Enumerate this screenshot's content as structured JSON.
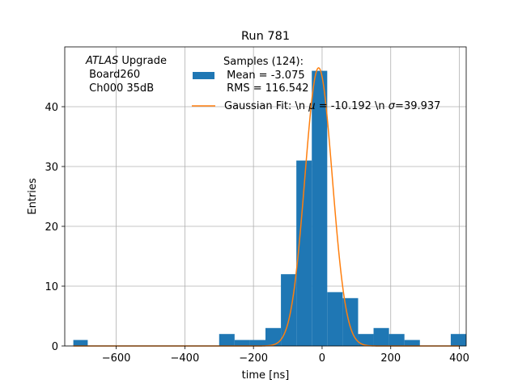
{
  "chart_data": {
    "type": "bar",
    "title": "Run 781",
    "xlabel": "time [ns]",
    "ylabel": "Entries",
    "xlim": [
      -750,
      420
    ],
    "ylim": [
      0,
      50
    ],
    "xticks": [
      -600,
      -400,
      -200,
      0,
      200,
      400
    ],
    "yticks": [
      0,
      10,
      20,
      30,
      40
    ],
    "grid": true,
    "legend_position": "top-center",
    "annotation": {
      "line1_italic": "ATLAS",
      "line1_rest": " Upgrade",
      "line2": " Board260",
      "line3": " Ch000 35dB"
    },
    "series": [
      {
        "name": "Samples (124):\n Mean = -3.075\n RMS = 116.542",
        "legend_lines": [
          "Samples (124):",
          " Mean = -3.075",
          " RMS = 116.542"
        ],
        "kind": "histogram",
        "color": "#1f77b4",
        "bins": [
          {
            "x0": -725,
            "x1": -683,
            "count": 1
          },
          {
            "x0": -300,
            "x1": -255,
            "count": 2
          },
          {
            "x0": -255,
            "x1": -210,
            "count": 1
          },
          {
            "x0": -210,
            "x1": -165,
            "count": 1
          },
          {
            "x0": -165,
            "x1": -120,
            "count": 3
          },
          {
            "x0": -120,
            "x1": -75,
            "count": 12
          },
          {
            "x0": -75,
            "x1": -30,
            "count": 31
          },
          {
            "x0": -30,
            "x1": 15,
            "count": 46
          },
          {
            "x0": 15,
            "x1": 60,
            "count": 9
          },
          {
            "x0": 60,
            "x1": 105,
            "count": 8
          },
          {
            "x0": 105,
            "x1": 150,
            "count": 2
          },
          {
            "x0": 150,
            "x1": 195,
            "count": 3
          },
          {
            "x0": 195,
            "x1": 240,
            "count": 2
          },
          {
            "x0": 240,
            "x1": 285,
            "count": 1
          },
          {
            "x0": 330,
            "x1": 375,
            "count": 0
          },
          {
            "x0": 375,
            "x1": 420,
            "count": 2
          }
        ]
      },
      {
        "name": "Gaussian Fit: \\n μ = -10.192 \\n σ=39.937",
        "legend_prefix": "Gaussian Fit: \\n ",
        "legend_mu": "μ",
        "legend_mid": " = -10.192 \\n ",
        "legend_sigma": "σ",
        "legend_suffix": "=39.937",
        "kind": "gaussian",
        "color": "#ff7f0e",
        "mu": -10.192,
        "sigma": 39.937,
        "amplitude": 46.5,
        "x_range": [
          -725,
          400
        ]
      }
    ]
  }
}
